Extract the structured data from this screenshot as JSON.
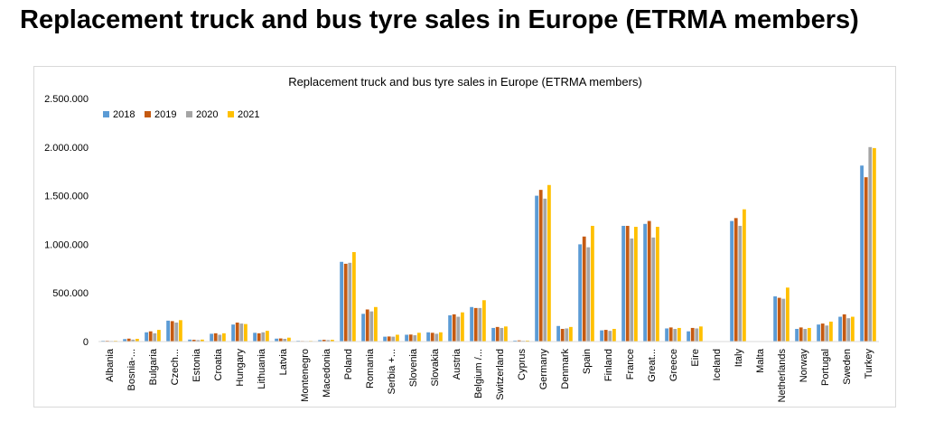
{
  "page_title": "Replacement truck and bus tyre sales in Europe (ETRMA members)",
  "chart_data": {
    "type": "bar",
    "title": "Replacement truck and bus tyre sales in Europe (ETRMA members)",
    "xlabel": "",
    "ylabel": "",
    "ylim": [
      0,
      2500000
    ],
    "yticks": [
      0,
      500000,
      1000000,
      1500000,
      2000000,
      2500000
    ],
    "ytick_labels": [
      "0",
      "500.000",
      "1.000.000",
      "1.500.000",
      "2.000.000",
      "2.500.000"
    ],
    "grid": false,
    "legend_position": "top-left",
    "categories": [
      "Albania",
      "Bosnia-...",
      "Bulgaria",
      "Czech...",
      "Estonia",
      "Croatia",
      "Hungary",
      "Lithuania",
      "Latvia",
      "Montenegro",
      "Macedonia",
      "Poland",
      "Romania",
      "Serbia +...",
      "Slovenia",
      "Slovakia",
      "Austria",
      "Belgium /...",
      "Switzerland",
      "Cyprus",
      "Germany",
      "Denmark",
      "Spain",
      "Finland",
      "France",
      "Great...",
      "Greece",
      "Eire",
      "Iceland",
      "Italy",
      "Malta",
      "Netherlands",
      "Norway",
      "Portugal",
      "Sweden",
      "Turkey"
    ],
    "series": [
      {
        "name": "2018",
        "color": "#5b9bd5",
        "values": [
          8000,
          25000,
          95000,
          215000,
          20000,
          80000,
          175000,
          90000,
          30000,
          8000,
          15000,
          820000,
          285000,
          50000,
          70000,
          95000,
          270000,
          355000,
          140000,
          10000,
          1500000,
          160000,
          1000000,
          115000,
          1190000,
          1210000,
          135000,
          105000,
          0,
          1240000,
          0,
          465000,
          130000,
          175000,
          255000,
          1810000
        ]
      },
      {
        "name": "2019",
        "color": "#c55a11",
        "values": [
          8000,
          30000,
          105000,
          210000,
          18000,
          85000,
          195000,
          85000,
          32000,
          6000,
          18000,
          800000,
          330000,
          52000,
          72000,
          90000,
          280000,
          345000,
          150000,
          12000,
          1560000,
          130000,
          1080000,
          120000,
          1190000,
          1240000,
          145000,
          140000,
          0,
          1270000,
          0,
          450000,
          145000,
          185000,
          280000,
          1690000
        ]
      },
      {
        "name": "2020",
        "color": "#a5a5a5",
        "values": [
          6000,
          20000,
          85000,
          195000,
          15000,
          70000,
          185000,
          95000,
          28000,
          5000,
          15000,
          810000,
          310000,
          50000,
          65000,
          80000,
          255000,
          345000,
          140000,
          8000,
          1470000,
          135000,
          970000,
          110000,
          1060000,
          1070000,
          130000,
          135000,
          0,
          1190000,
          0,
          440000,
          130000,
          165000,
          240000,
          2000000
        ]
      },
      {
        "name": "2021",
        "color": "#ffc000",
        "values": [
          8000,
          28000,
          120000,
          220000,
          20000,
          85000,
          180000,
          110000,
          40000,
          7000,
          18000,
          920000,
          355000,
          70000,
          90000,
          95000,
          300000,
          425000,
          155000,
          10000,
          1610000,
          150000,
          1190000,
          130000,
          1180000,
          1180000,
          140000,
          155000,
          0,
          1360000,
          0,
          555000,
          140000,
          205000,
          255000,
          1990000
        ]
      }
    ]
  }
}
